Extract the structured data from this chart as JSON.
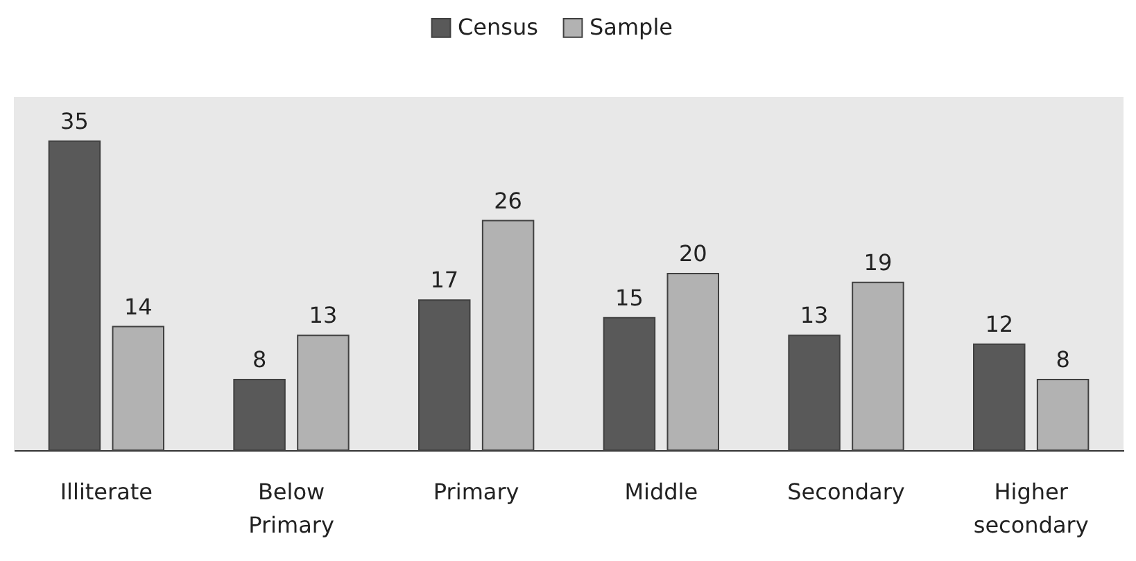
{
  "chart_data": {
    "type": "bar",
    "categories": [
      "Illiterate",
      "Below Primary",
      "Primary",
      "Middle",
      "Secondary",
      "Higher secondary"
    ],
    "series": [
      {
        "name": "Census",
        "color": "#595959",
        "values": [
          35,
          8,
          17,
          15,
          13,
          12
        ]
      },
      {
        "name": "Sample",
        "color": "#b2b2b2",
        "values": [
          14,
          13,
          26,
          20,
          19,
          8
        ]
      }
    ],
    "ylim": [
      0,
      40
    ],
    "data_labels": true,
    "legend": "top",
    "tick_labels": "x"
  }
}
